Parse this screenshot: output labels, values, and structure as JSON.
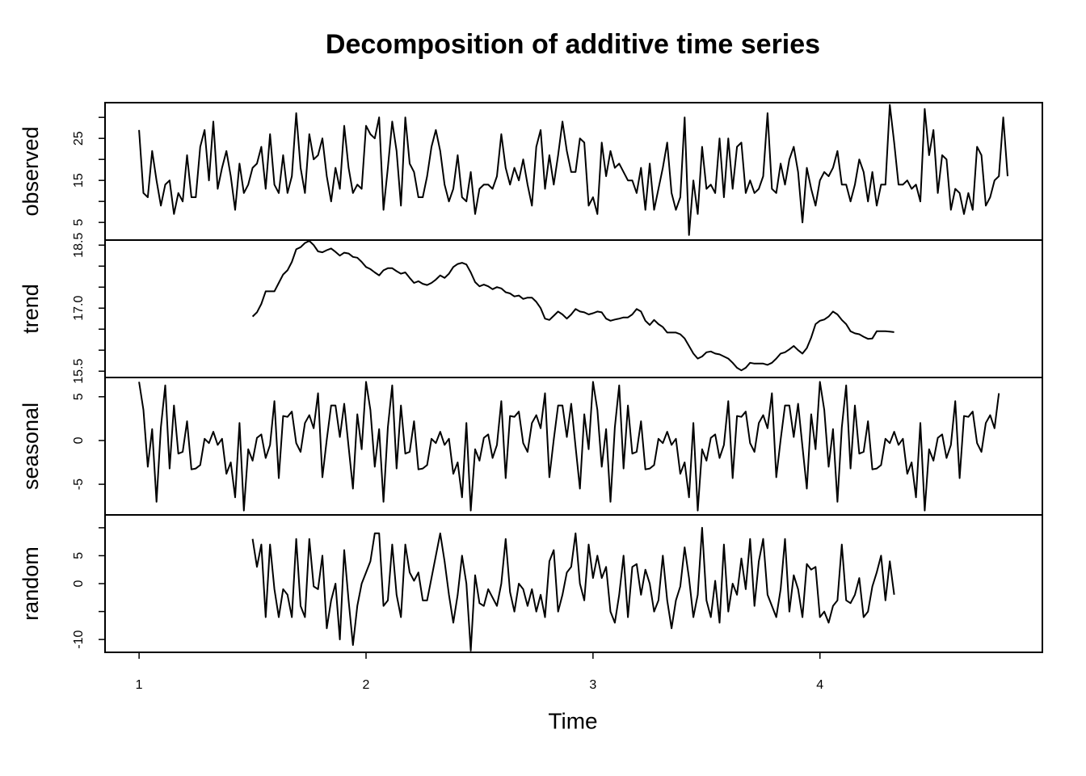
{
  "chart_data": {
    "type": "line",
    "title": "Decomposition of additive time series",
    "xlabel": "Time",
    "start": 1,
    "frequency": 52,
    "xlim": [
      0.85,
      4.98
    ],
    "xticks": [
      1,
      2,
      3,
      4
    ],
    "color": "#000000",
    "panels": [
      {
        "ylabel": "observed",
        "ylim": [
          0.8,
          33.5
        ],
        "yticks": [
          5,
          15,
          25
        ],
        "minor_yticks": [
          10,
          20,
          30
        ],
        "values": [
          27,
          12,
          11,
          22,
          15,
          9,
          14,
          15,
          7,
          12,
          10,
          21,
          11,
          11,
          23,
          27,
          15,
          29,
          13,
          18,
          22,
          16,
          8,
          19,
          12,
          14,
          18,
          19,
          23,
          13,
          26,
          14,
          12,
          21,
          12,
          16,
          31,
          18,
          12,
          26,
          20,
          21,
          25,
          16,
          10,
          18,
          13,
          28,
          18,
          12,
          14,
          13,
          28,
          26,
          25,
          30,
          8,
          18,
          29,
          22,
          9,
          30,
          19,
          17,
          11,
          11,
          16,
          23,
          27,
          22,
          14,
          10,
          13,
          21,
          11,
          10,
          17,
          7,
          13,
          14,
          14,
          13,
          16,
          26,
          18,
          14,
          18,
          15,
          20,
          14,
          9,
          23,
          27,
          13,
          21,
          14,
          21,
          29,
          22,
          17,
          17,
          25,
          24,
          9,
          11,
          7,
          24,
          16,
          22,
          18,
          19,
          17,
          15,
          15,
          12,
          18,
          8,
          19,
          8,
          13,
          18,
          24,
          12,
          8,
          11,
          30,
          2,
          15,
          7,
          23,
          13,
          14,
          12,
          25,
          11,
          25,
          13,
          23,
          24,
          12,
          15,
          12,
          13,
          16,
          31,
          13,
          12,
          19,
          14,
          20,
          23,
          17,
          5,
          18,
          13,
          9,
          15,
          17,
          16,
          18,
          22,
          14,
          14,
          10,
          14,
          20,
          17,
          10,
          17,
          9,
          14,
          14,
          33,
          24,
          14,
          14,
          15,
          13,
          14,
          10,
          32,
          21,
          27,
          12,
          21,
          20,
          8,
          13,
          12,
          7,
          12,
          8,
          23,
          21,
          9,
          11,
          15,
          16,
          30,
          16
        ]
      },
      {
        "ylabel": "trend",
        "ylim": [
          15.35,
          18.62
        ],
        "yticks": [
          15.5,
          {
            "value": 17,
            "label": "17.0"
          },
          18.5
        ],
        "minor_yticks": [
          16,
          16.5,
          17.5,
          18
        ],
        "values": [
          null,
          null,
          null,
          null,
          null,
          null,
          null,
          null,
          null,
          null,
          null,
          null,
          null,
          null,
          null,
          null,
          null,
          null,
          null,
          null,
          null,
          null,
          null,
          null,
          null,
          null,
          16.8,
          16.9,
          17.1,
          17.4,
          17.4,
          17.4,
          17.6,
          17.8,
          17.9,
          18.1,
          18.4,
          18.45,
          18.55,
          18.6,
          18.5,
          18.35,
          18.33,
          18.38,
          18.42,
          18.34,
          18.25,
          18.32,
          18.3,
          18.22,
          18.2,
          18.1,
          17.98,
          17.93,
          17.85,
          17.78,
          17.9,
          17.95,
          17.95,
          17.88,
          17.82,
          17.85,
          17.72,
          17.6,
          17.64,
          17.58,
          17.55,
          17.6,
          17.68,
          17.78,
          17.72,
          17.82,
          17.98,
          18.05,
          18.08,
          18.04,
          17.85,
          17.62,
          17.52,
          17.56,
          17.52,
          17.45,
          17.5,
          17.47,
          17.38,
          17.35,
          17.28,
          17.3,
          17.22,
          17.25,
          17.25,
          17.15,
          17.0,
          16.75,
          16.72,
          16.82,
          16.92,
          16.85,
          16.75,
          16.85,
          16.98,
          16.92,
          16.9,
          16.85,
          16.88,
          16.92,
          16.9,
          16.75,
          16.7,
          16.73,
          16.75,
          16.78,
          16.78,
          16.85,
          16.98,
          16.92,
          16.7,
          16.6,
          16.72,
          16.62,
          16.55,
          16.42,
          16.42,
          16.42,
          16.38,
          16.28,
          16.1,
          15.92,
          15.8,
          15.85,
          15.95,
          15.97,
          15.92,
          15.9,
          15.85,
          15.8,
          15.7,
          15.58,
          15.52,
          15.58,
          15.7,
          15.68,
          15.68,
          15.68,
          15.65,
          15.7,
          15.8,
          15.92,
          15.95,
          16.02,
          16.1,
          16.0,
          15.92,
          16.05,
          16.3,
          16.62,
          16.7,
          16.73,
          16.8,
          16.92,
          16.85,
          16.72,
          16.62,
          16.45,
          16.4,
          16.38,
          16.32,
          16.27,
          16.28,
          16.45,
          16.45,
          16.45,
          16.44,
          16.43,
          null,
          null,
          null,
          null,
          null,
          null,
          null,
          null,
          null,
          null,
          null,
          null,
          null,
          null,
          null,
          null,
          null,
          null,
          null,
          null,
          null,
          null,
          null,
          null,
          null,
          null
        ]
      },
      {
        "ylabel": "seasonal",
        "ylim": [
          -8.5,
          7.2
        ],
        "yticks": [
          -5,
          0,
          5
        ],
        "minor_yticks": [],
        "values": [
          6.7,
          3.5,
          -3.0,
          1.3,
          -7.0,
          1.5,
          6.3,
          -3.2,
          4.0,
          -1.5,
          -1.3,
          2.2,
          -3.3,
          -3.2,
          -2.8,
          0.2,
          -0.3,
          1.0,
          -0.5,
          0.2,
          -3.8,
          -2.5,
          -6.5,
          2.0,
          -8.0,
          -1.0,
          -2.3,
          0.3,
          0.7,
          -2.0,
          -0.5,
          4.5,
          -4.3,
          2.8,
          2.7,
          3.3,
          -0.3,
          -1.3,
          2.0,
          2.9,
          1.4,
          5.4,
          -4.2,
          0.1,
          4.0,
          4.0,
          0.4,
          4.2,
          -0.7,
          -5.5,
          3.0,
          -1.0,
          6.7,
          3.5,
          -3.0,
          1.3,
          -7.0,
          1.5,
          6.3,
          -3.2,
          4.0,
          -1.5,
          -1.3,
          2.2,
          -3.3,
          -3.2,
          -2.8,
          0.2,
          -0.3,
          1.0,
          -0.5,
          0.2,
          -3.8,
          -2.5,
          -6.5,
          2.0,
          -8.0,
          -1.0,
          -2.3,
          0.3,
          0.7,
          -2.0,
          -0.5,
          4.5,
          -4.3,
          2.8,
          2.7,
          3.3,
          -0.3,
          -1.3,
          2.0,
          2.9,
          1.4,
          5.4,
          -4.2,
          0.1,
          4.0,
          4.0,
          0.4,
          4.2,
          -0.7,
          -5.5,
          3.0,
          -1.0,
          6.7,
          3.5,
          -3.0,
          1.3,
          -7.0,
          1.5,
          6.3,
          -3.2,
          4.0,
          -1.5,
          -1.3,
          2.2,
          -3.3,
          -3.2,
          -2.8,
          0.2,
          -0.3,
          1.0,
          -0.5,
          0.2,
          -3.8,
          -2.5,
          -6.5,
          2.0,
          -8.0,
          -1.0,
          -2.3,
          0.3,
          0.7,
          -2.0,
          -0.5,
          4.5,
          -4.3,
          2.8,
          2.7,
          3.3,
          -0.3,
          -1.3,
          2.0,
          2.9,
          1.4,
          5.4,
          -4.2,
          0.1,
          4.0,
          4.0,
          0.4,
          4.2,
          -0.7,
          -5.5,
          3.0,
          -1.0,
          6.7,
          3.5,
          -3.0,
          1.3,
          -7.0,
          1.5,
          6.3,
          -3.2,
          4.0,
          -1.5,
          -1.3,
          2.2,
          -3.3,
          -3.2,
          -2.8,
          0.2,
          -0.3,
          1.0,
          -0.5,
          0.2,
          -3.8,
          -2.5,
          -6.5,
          2.0,
          -8.0,
          -1.0,
          -2.3,
          0.3,
          0.7,
          -2.0,
          -0.5,
          4.5,
          -4.3,
          2.8,
          2.7,
          3.3,
          -0.3,
          -1.3,
          2.0,
          2.9,
          1.4,
          5.4
        ]
      },
      {
        "ylabel": "random",
        "ylim": [
          -12.3,
          12.3
        ],
        "yticks": [
          -10,
          0,
          5
        ],
        "minor_yticks": [
          -5,
          10
        ],
        "values": [
          null,
          null,
          null,
          null,
          null,
          null,
          null,
          null,
          null,
          null,
          null,
          null,
          null,
          null,
          null,
          null,
          null,
          null,
          null,
          null,
          null,
          null,
          null,
          null,
          null,
          null,
          8,
          3,
          7,
          -6,
          7,
          -1,
          -6,
          -1,
          -2,
          -6,
          8,
          -4,
          -6,
          8,
          -0.5,
          -1,
          5,
          -8,
          -3,
          0,
          -10,
          6,
          -3,
          -11,
          -4,
          0,
          2,
          4,
          9,
          9,
          -4,
          -3,
          7,
          -2,
          -6,
          7,
          2,
          0.5,
          2,
          -3,
          -3,
          1,
          5,
          9,
          4,
          -2,
          -7,
          -2,
          5,
          0,
          -12,
          1.5,
          -3.5,
          -4,
          -1,
          -2.5,
          -4,
          0,
          8,
          -1.5,
          -5,
          0,
          -1,
          -4,
          -1,
          -5,
          -2,
          -6,
          4,
          6,
          -5,
          -2,
          2,
          3,
          9,
          0,
          -3,
          7,
          1,
          5,
          1,
          3,
          -5,
          -7,
          -2,
          5,
          -6,
          3,
          3.5,
          -2,
          2.5,
          0,
          -5,
          -3,
          5,
          -3,
          -8,
          -3,
          -0.5,
          6.5,
          1,
          -6,
          -2,
          10,
          -3,
          -6,
          0.5,
          -7,
          7,
          -5,
          0,
          -2,
          4.5,
          -1,
          8,
          -4,
          4,
          8,
          -2,
          -4,
          -6,
          -1,
          8,
          -5,
          1.5,
          -1,
          -6,
          3.5,
          2.5,
          3,
          -6,
          -5,
          -7,
          -4,
          -3,
          7,
          -3,
          -3.5,
          -2,
          1,
          -6,
          -5,
          -0.5,
          2,
          5,
          -3,
          4,
          -2,
          null,
          null,
          null,
          null,
          null,
          null,
          null,
          null,
          null,
          null,
          null,
          null,
          null,
          null,
          null,
          null,
          null,
          null,
          null,
          null,
          null,
          null,
          null,
          null,
          null,
          null
        ]
      }
    ]
  }
}
